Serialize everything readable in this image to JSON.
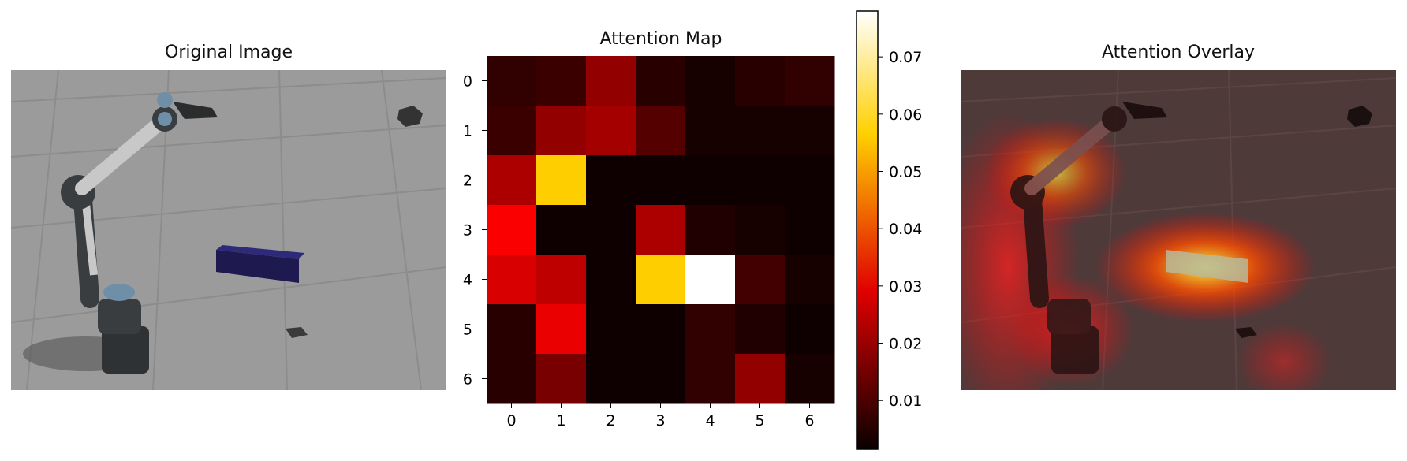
{
  "panels": {
    "original_title": "Original Image",
    "heatmap_title": "Attention Map",
    "overlay_title": "Attention Overlay"
  },
  "colors": {
    "floor": "#9a9a9a",
    "grid_line": "#8a8a8a",
    "robot_dark": "#3a3d40",
    "robot_joint": "#6f8fa8",
    "block": "#1e1a4f"
  },
  "chart_data": {
    "type": "heatmap",
    "title": "Attention Map",
    "x_ticks": [
      "0",
      "1",
      "2",
      "3",
      "4",
      "5",
      "6"
    ],
    "y_ticks": [
      "0",
      "1",
      "2",
      "3",
      "4",
      "5",
      "6"
    ],
    "colormap": "hot",
    "vmin": 0.0015,
    "vmax": 0.078,
    "colorbar_ticks": [
      "0.01",
      "0.02",
      "0.03",
      "0.04",
      "0.05",
      "0.06",
      "0.07"
    ],
    "colorbar_tick_values": [
      0.01,
      0.02,
      0.03,
      0.04,
      0.05,
      0.06,
      0.07
    ],
    "grid": false,
    "values": [
      [
        0.006,
        0.007,
        0.017,
        0.005,
        0.003,
        0.005,
        0.006
      ],
      [
        0.007,
        0.017,
        0.019,
        0.01,
        0.003,
        0.003,
        0.003
      ],
      [
        0.02,
        0.052,
        0.002,
        0.002,
        0.002,
        0.002,
        0.002
      ],
      [
        0.029,
        0.002,
        0.002,
        0.02,
        0.004,
        0.003,
        0.002
      ],
      [
        0.025,
        0.022,
        0.002,
        0.052,
        0.078,
        0.008,
        0.003
      ],
      [
        0.005,
        0.027,
        0.002,
        0.002,
        0.006,
        0.004,
        0.002
      ],
      [
        0.005,
        0.014,
        0.002,
        0.002,
        0.006,
        0.017,
        0.003
      ]
    ]
  }
}
